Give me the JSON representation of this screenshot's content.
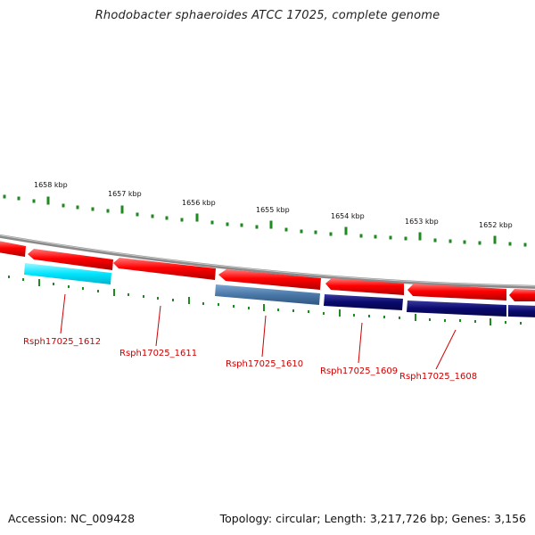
{
  "title": "Rhodobacter sphaeroides ATCC 17025, complete genome",
  "footer": {
    "accession": "Accession: NC_009428",
    "summary": "Topology: circular; Length: 3,217,726 bp; Genes: 3,156"
  },
  "kbp_labels": [
    "1658 kbp",
    "1657 kbp",
    "1656 kbp",
    "1655 kbp",
    "1654 kbp",
    "1653 kbp",
    "1652 kbp"
  ],
  "gene_labels": [
    "Rsph17025_1612",
    "Rsph17025_1611",
    "Rsph17025_1610",
    "Rsph17025_1609",
    "Rsph17025_1608"
  ],
  "colors": {
    "forward_cds": "#ff0000",
    "backbone": "#8a8a8a",
    "tick": "#1f8a1f",
    "gene_label": "#cc0000",
    "inner_cyan": "#00e5ff",
    "inner_steelblue": "#4a78a8",
    "inner_navy": "#0a0a6e"
  }
}
